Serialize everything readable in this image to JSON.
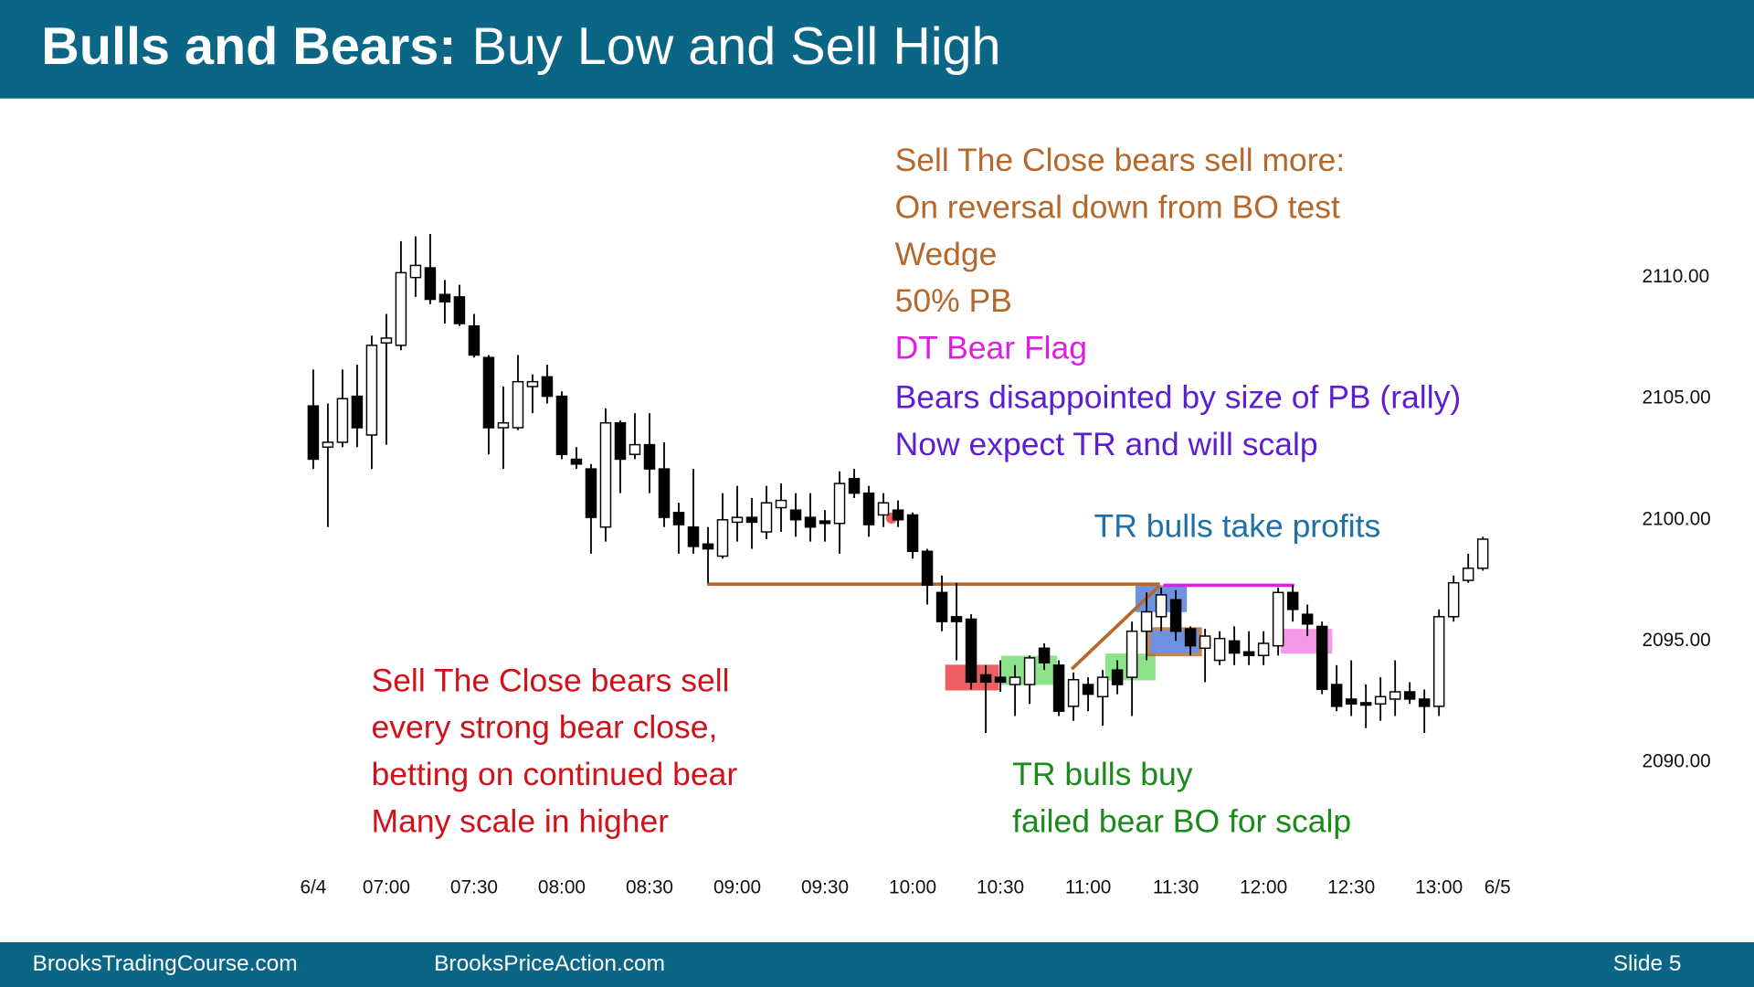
{
  "header": {
    "title_bold": "Bulls and Bears:",
    "title_rest": "Buy Low and Sell High"
  },
  "chart_data": {
    "type": "candlestick",
    "open": [
      2104.7,
      2103.0,
      2103.2,
      2105.1,
      2103.5,
      2107.3,
      2107.2,
      2110.0,
      2110.4,
      2109.3,
      2109.2,
      2108.0,
      2106.7,
      2103.8,
      2103.8,
      2105.5,
      2105.9,
      2105.1,
      2102.5,
      2102.1,
      2099.7,
      2104.0,
      2102.7,
      2103.1,
      2102.1,
      2100.3,
      2099.7,
      2099.0,
      2098.5,
      2099.9,
      2100.1,
      2099.5,
      2100.5,
      2100.4,
      2100.1,
      2099.95,
      2099.85,
      2101.7,
      2101.1,
      2100.2,
      2100.4,
      2100.2,
      2098.7,
      2097.0,
      2096.0,
      2095.9,
      2093.6,
      2093.5,
      2093.2,
      2093.2,
      2094.7,
      2094.0,
      2092.3,
      2093.2,
      2092.7,
      2093.8,
      2093.5,
      2095.4,
      2096.0,
      2096.7,
      2095.5,
      2094.7,
      2094.2,
      2095.0,
      2094.55,
      2094.4,
      2094.8,
      2097.0,
      2096.1,
      2095.6,
      2093.2,
      2092.6,
      2092.45,
      2092.4,
      2092.6,
      2092.9,
      2092.6,
      2092.3,
      2096.0,
      2097.5,
      2098.0
    ],
    "high": [
      2106.2,
      2104.8,
      2106.2,
      2106.4,
      2107.6,
      2108.5,
      2111.5,
      2111.7,
      2111.8,
      2109.9,
      2109.7,
      2108.5,
      2106.8,
      2105.5,
      2106.8,
      2106.0,
      2106.4,
      2105.3,
      2103.0,
      2102.3,
      2104.6,
      2104.1,
      2104.4,
      2104.4,
      2103.2,
      2100.7,
      2102.1,
      2099.7,
      2101.1,
      2101.4,
      2100.9,
      2101.4,
      2101.5,
      2101.1,
      2101.1,
      2100.4,
      2102.0,
      2102.1,
      2101.4,
      2101.1,
      2100.8,
      2100.3,
      2098.8,
      2097.7,
      2097.4,
      2096.1,
      2094.0,
      2094.2,
      2094.0,
      2094.4,
      2094.9,
      2094.2,
      2093.7,
      2093.5,
      2093.8,
      2094.2,
      2095.8,
      2097.0,
      2097.2,
      2097.1,
      2095.6,
      2095.5,
      2095.4,
      2095.6,
      2095.4,
      2095.4,
      2097.2,
      2097.3,
      2096.5,
      2095.8,
      2094.0,
      2094.2,
      2093.2,
      2093.5,
      2094.2,
      2093.3,
      2093.0,
      2096.3,
      2097.7,
      2098.6,
      2099.3
    ],
    "low": [
      2102.1,
      2099.7,
      2103.0,
      2103.0,
      2102.1,
      2103.1,
      2107.0,
      2109.2,
      2108.9,
      2108.1,
      2108.0,
      2106.7,
      2102.7,
      2102.1,
      2103.7,
      2104.4,
      2104.8,
      2102.5,
      2102.1,
      2098.6,
      2099.1,
      2101.1,
      2102.5,
      2101.1,
      2099.7,
      2098.6,
      2098.6,
      2097.4,
      2098.4,
      2099.1,
      2098.8,
      2099.2,
      2099.5,
      2099.3,
      2099.1,
      2099.1,
      2098.6,
      2100.9,
      2099.3,
      2099.7,
      2099.7,
      2098.4,
      2096.5,
      2095.4,
      2094.2,
      2093.0,
      2091.2,
      2092.9,
      2091.9,
      2092.4,
      2093.8,
      2091.9,
      2091.7,
      2092.1,
      2091.5,
      2092.8,
      2091.9,
      2094.2,
      2095.4,
      2095.0,
      2094.4,
      2093.3,
      2094.0,
      2094.0,
      2094.0,
      2094.0,
      2094.4,
      2095.8,
      2095.2,
      2092.8,
      2092.1,
      2091.9,
      2091.4,
      2091.7,
      2091.9,
      2092.4,
      2091.2,
      2091.9,
      2095.8,
      2097.4,
      2097.9
    ],
    "close": [
      2102.5,
      2103.2,
      2105.0,
      2103.8,
      2107.2,
      2107.5,
      2110.2,
      2110.5,
      2109.1,
      2109.0,
      2108.1,
      2106.8,
      2103.8,
      2104.0,
      2105.7,
      2105.7,
      2105.1,
      2102.7,
      2102.3,
      2100.1,
      2104.0,
      2102.5,
      2103.1,
      2102.1,
      2100.1,
      2099.8,
      2098.9,
      2098.8,
      2100.0,
      2100.1,
      2099.9,
      2100.7,
      2100.8,
      2100.0,
      2099.7,
      2099.85,
      2101.5,
      2101.1,
      2099.8,
      2100.7,
      2100.0,
      2098.7,
      2097.3,
      2095.8,
      2095.8,
      2093.3,
      2093.3,
      2093.3,
      2093.5,
      2094.3,
      2094.1,
      2092.1,
      2093.4,
      2092.8,
      2093.5,
      2093.2,
      2095.4,
      2096.2,
      2096.9,
      2095.4,
      2094.8,
      2095.2,
      2095.1,
      2094.5,
      2094.4,
      2094.9,
      2097.0,
      2096.3,
      2095.7,
      2093.0,
      2092.3,
      2092.4,
      2092.35,
      2092.7,
      2092.9,
      2092.6,
      2092.3,
      2096.0,
      2097.4,
      2098.0,
      2099.2
    ],
    "up_color": "#ffffff",
    "down_color": "#000000",
    "xlim": [
      -0.5,
      81.5
    ],
    "xticks": [
      {
        "value": 0,
        "label": "6/4"
      },
      {
        "value": 5,
        "label": "07:00"
      },
      {
        "value": 11,
        "label": "07:30"
      },
      {
        "value": 17,
        "label": "08:00"
      },
      {
        "value": 23,
        "label": "08:30"
      },
      {
        "value": 29,
        "label": "09:00"
      },
      {
        "value": 35,
        "label": "09:30"
      },
      {
        "value": 41,
        "label": "10:00"
      },
      {
        "value": 47,
        "label": "10:30"
      },
      {
        "value": 53,
        "label": "11:00"
      },
      {
        "value": 59,
        "label": "11:30"
      },
      {
        "value": 65,
        "label": "12:00"
      },
      {
        "value": 71,
        "label": "12:30"
      },
      {
        "value": 77,
        "label": "13:00"
      },
      {
        "value": 81,
        "label": "6/5"
      }
    ],
    "ylim": [
      2086,
      2117
    ],
    "yticks": [
      {
        "value": 2090,
        "label": "2090.00"
      },
      {
        "value": 2095,
        "label": "2095.00"
      },
      {
        "value": 2100,
        "label": "2100.00"
      },
      {
        "value": 2105,
        "label": "2105.00"
      },
      {
        "value": 2110,
        "label": "2110.00"
      }
    ],
    "annotations": [
      {
        "color": "#b5682c",
        "lines": [
          "Sell The Close bears sell  more:",
          "On reversal down from BO test",
          "Wedge",
          "50% PB"
        ]
      },
      {
        "color": "#e01ee0",
        "lines": [
          "DT Bear Flag"
        ]
      },
      {
        "color": "#5b1fd1",
        "lines": [
          "Bears disappointed by size of PB (rally)",
          "Now expect TR and will scalp"
        ]
      },
      {
        "color": "#1f6fa8",
        "lines": [
          "TR bulls take profits"
        ]
      },
      {
        "color": "#d0121a",
        "lines": [
          "Sell The Close bears sell",
          "every strong bear close,",
          "betting on continued bear",
          "Many scale in higher"
        ]
      },
      {
        "color": "#1a8a1a",
        "lines": [
          "TR bulls buy",
          "failed bear BO for scalp"
        ]
      }
    ]
  },
  "footer": {
    "left": "BrooksTradingCourse.com",
    "center": "BrooksPriceAction.com",
    "slide": "Slide  5"
  }
}
